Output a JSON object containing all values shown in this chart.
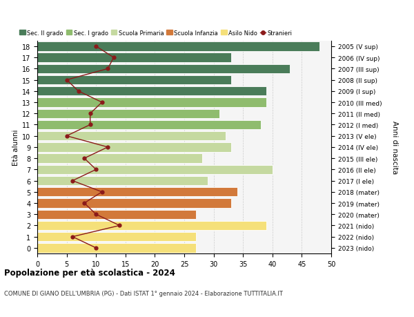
{
  "ages": [
    18,
    17,
    16,
    15,
    14,
    13,
    12,
    11,
    10,
    9,
    8,
    7,
    6,
    5,
    4,
    3,
    2,
    1,
    0
  ],
  "years": [
    "2005 (V sup)",
    "2006 (IV sup)",
    "2007 (III sup)",
    "2008 (II sup)",
    "2009 (I sup)",
    "2010 (III med)",
    "2011 (II med)",
    "2012 (I med)",
    "2013 (V ele)",
    "2014 (IV ele)",
    "2015 (III ele)",
    "2016 (II ele)",
    "2017 (I ele)",
    "2018 (mater)",
    "2019 (mater)",
    "2020 (mater)",
    "2021 (nido)",
    "2022 (nido)",
    "2023 (nido)"
  ],
  "bar_values": [
    48,
    33,
    43,
    33,
    39,
    39,
    31,
    38,
    32,
    33,
    28,
    40,
    29,
    34,
    33,
    27,
    39,
    27,
    27
  ],
  "bar_colors": [
    "#4a7c59",
    "#4a7c59",
    "#4a7c59",
    "#4a7c59",
    "#4a7c59",
    "#8fbc6e",
    "#8fbc6e",
    "#8fbc6e",
    "#c5d9a0",
    "#c5d9a0",
    "#c5d9a0",
    "#c5d9a0",
    "#c5d9a0",
    "#d2793a",
    "#d2793a",
    "#d2793a",
    "#f5e07a",
    "#f5e07a",
    "#f5e07a"
  ],
  "stranieri_values": [
    10,
    13,
    12,
    5,
    7,
    11,
    9,
    9,
    5,
    12,
    8,
    10,
    6,
    11,
    8,
    10,
    14,
    6,
    10
  ],
  "stranieri_color": "#8b1a1a",
  "xlim": [
    0,
    50
  ],
  "xticks": [
    0,
    5,
    10,
    15,
    20,
    25,
    30,
    35,
    40,
    45,
    50
  ],
  "legend_labels": [
    "Sec. II grado",
    "Sec. I grado",
    "Scuola Primaria",
    "Scuola Infanzia",
    "Asilo Nido",
    "Stranieri"
  ],
  "legend_colors": [
    "#4a7c59",
    "#8fbc6e",
    "#c5d9a0",
    "#d2793a",
    "#f5e07a",
    "#8b1a1a"
  ],
  "title": "Popolazione per età scolastica - 2024",
  "subtitle": "COMUNE DI GIANO DELL'UMBRIA (PG) - Dati ISTAT 1° gennaio 2024 - Elaborazione TUTTITALIA.IT",
  "ylabel_left": "Età alunni",
  "ylabel_right": "Anni di nascita",
  "bg_color": "#f5f5f5",
  "bar_edge_color": "white"
}
